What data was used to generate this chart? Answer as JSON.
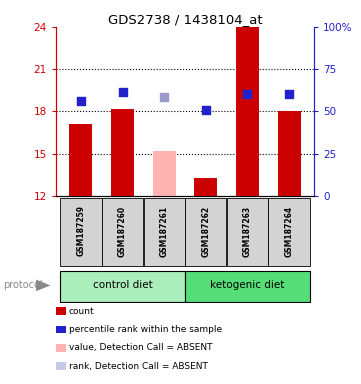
{
  "title": "GDS2738 / 1438104_at",
  "samples": [
    "GSM187259",
    "GSM187260",
    "GSM187261",
    "GSM187262",
    "GSM187263",
    "GSM187264"
  ],
  "bar_values": [
    17.1,
    18.2,
    15.2,
    13.3,
    24.0,
    18.0
  ],
  "bar_colors": [
    "#cc0000",
    "#cc0000",
    "#ffb3b3",
    "#cc0000",
    "#cc0000",
    "#cc0000"
  ],
  "dot_values": [
    18.75,
    19.35,
    19.0,
    18.1,
    19.25,
    19.25
  ],
  "dot_colors": [
    "#2222cc",
    "#2222cc",
    "#9999cc",
    "#2222cc",
    "#2222cc",
    "#2222cc"
  ],
  "ymin": 12,
  "ymax": 24,
  "yticks_left": [
    12,
    15,
    18,
    21,
    24
  ],
  "ytick_labels_right": [
    "0",
    "25",
    "50",
    "75",
    "100%"
  ],
  "groups": [
    {
      "label": "control diet",
      "start": 0,
      "end": 3,
      "color": "#aaeebb"
    },
    {
      "label": "ketogenic diet",
      "start": 3,
      "end": 6,
      "color": "#55dd77"
    }
  ],
  "legend_items": [
    {
      "color": "#cc0000",
      "label": "count"
    },
    {
      "color": "#2222cc",
      "label": "percentile rank within the sample"
    },
    {
      "color": "#ffb3b3",
      "label": "value, Detection Call = ABSENT"
    },
    {
      "color": "#c8c8e8",
      "label": "rank, Detection Call = ABSENT"
    }
  ],
  "bar_width": 0.55,
  "axis_color_left": "#cc0000",
  "axis_color_right": "#2222cc",
  "sample_box_color": "#d3d3d3",
  "dot_size": 28
}
